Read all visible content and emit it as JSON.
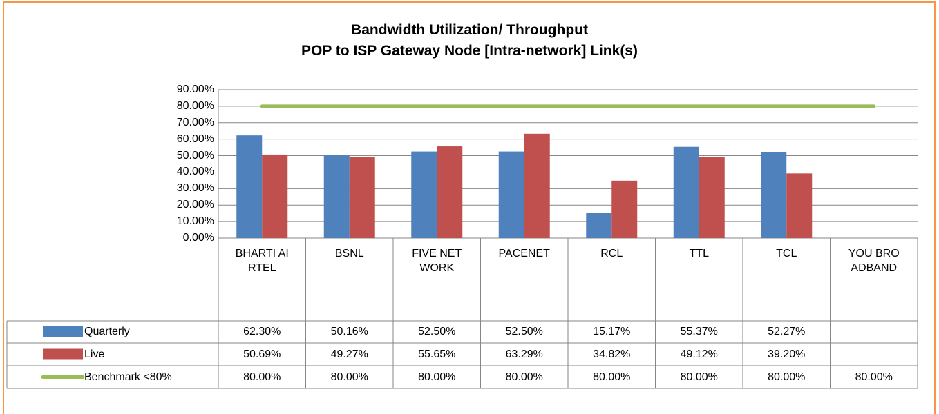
{
  "chart_data": {
    "type": "bar",
    "title": "Bandwidth Utilization/ Throughput",
    "subtitle": "POP to ISP Gateway Node [Intra-network] Link(s)",
    "categories": [
      "BHARTI AIRTEL",
      "BSNL",
      "FIVE NETWORK",
      "PACENET",
      "RCL",
      "TTL",
      "TCL",
      "YOU BROADBAND"
    ],
    "series": [
      {
        "name": "Quarterly",
        "type": "bar",
        "color": "#4f81bd",
        "values": [
          62.3,
          50.16,
          52.5,
          52.5,
          15.17,
          55.37,
          52.27,
          null
        ],
        "value_labels": [
          "62.30%",
          "50.16%",
          "52.50%",
          "52.50%",
          "15.17%",
          "55.37%",
          "52.27%",
          null
        ]
      },
      {
        "name": "Live",
        "type": "bar",
        "color": "#c0504d",
        "values": [
          50.69,
          49.27,
          55.65,
          63.29,
          34.82,
          49.12,
          39.2,
          null
        ],
        "value_labels": [
          "50.69%",
          "49.27%",
          "55.65%",
          "63.29%",
          "34.82%",
          "49.12%",
          "39.20%",
          null
        ]
      },
      {
        "name": "Benchmark <80%",
        "type": "line",
        "color": "#9bbb59",
        "values": [
          80,
          80,
          80,
          80,
          80,
          80,
          80,
          80
        ],
        "value_labels": [
          "80.00%",
          "80.00%",
          "80.00%",
          "80.00%",
          "80.00%",
          "80.00%",
          "80.00%",
          "80.00%"
        ]
      }
    ],
    "ylim": [
      0,
      90
    ],
    "yticks": [
      {
        "value": 0,
        "label": "0.00%"
      },
      {
        "value": 10,
        "label": "10.00%"
      },
      {
        "value": 20,
        "label": "20.00%"
      },
      {
        "value": 30,
        "label": "30.00%"
      },
      {
        "value": 40,
        "label": "40.00%"
      },
      {
        "value": 50,
        "label": "50.00%"
      },
      {
        "value": 60,
        "label": "60.00%"
      },
      {
        "value": 70,
        "label": "70.00%"
      },
      {
        "value": 80,
        "label": "80.00%"
      },
      {
        "value": 90,
        "label": "90.00%"
      }
    ],
    "grid": true,
    "data_table": true
  }
}
